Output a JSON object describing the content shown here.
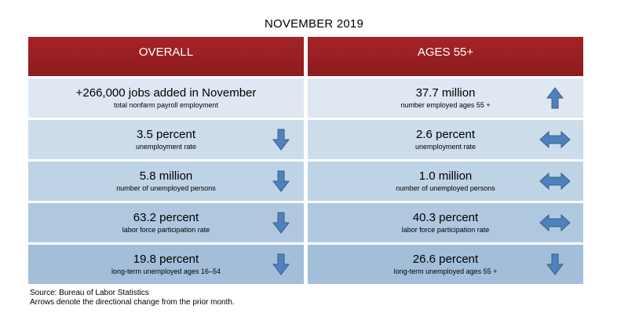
{
  "title": "NOVEMBER 2019",
  "overall": {
    "header": "OVERALL",
    "rows": [
      {
        "value": "+266,000 jobs added in November",
        "label": "total nonfarm payroll employment",
        "arrow": "none"
      },
      {
        "value": "3.5 percent",
        "label": "unemployment rate",
        "arrow": "down"
      },
      {
        "value": "5.8 million",
        "label": "number of unemployed persons",
        "arrow": "down"
      },
      {
        "value": "63.2 percent",
        "label": "labor force participation rate",
        "arrow": "down"
      },
      {
        "value": "19.8 percent",
        "label": "long-term unemployed ages 16–54",
        "arrow": "down"
      }
    ]
  },
  "ages55": {
    "header": "AGES 55+",
    "rows": [
      {
        "value": "37.7 million",
        "label": "number employed ages 55 +",
        "arrow": "up"
      },
      {
        "value": "2.6 percent",
        "label": "unemployment rate",
        "arrow": "both"
      },
      {
        "value": "1.0 million",
        "label": "number of unemployed persons",
        "arrow": "both"
      },
      {
        "value": "40.3 percent",
        "label": "labor force participation rate",
        "arrow": "both"
      },
      {
        "value": "26.6 percent",
        "label": "long-term unemployed ages 55 +",
        "arrow": "down"
      }
    ]
  },
  "footer": {
    "source": "Source: Bureau of Labor Statistics",
    "note": "Arrows denote the directional change from the prior month."
  },
  "colors": {
    "header": "#9b2023",
    "arrow_fill": "#4f81bd",
    "arrow_stroke": "#385d8a",
    "row_fills": [
      "#dfe8f2",
      "#cddcea",
      "#bfd3e6",
      "#afc8df",
      "#a2bed9"
    ]
  }
}
